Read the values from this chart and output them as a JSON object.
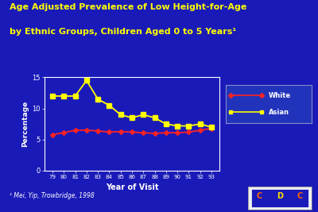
{
  "title_line1": "Age Adjusted Prevalence of Low Height-for-Age",
  "title_line2": "by Ethnic Groups, Children Aged 0 to 5 Years¹",
  "xlabel": "Year of Visit",
  "ylabel": "Percentage",
  "footnote": "¹ Mei, Yip, Trowbridge, 1998",
  "background_color": "#1a1ab8",
  "plot_bg_color": "#1a1ab8",
  "title_color": "#ffff00",
  "axis_color": "#ffffff",
  "xlabel_color": "#ffffff",
  "ylabel_color": "#ffffff",
  "tick_color": "#ffffff",
  "footnote_color": "#ffffff",
  "years": [
    79,
    80,
    81,
    82,
    83,
    84,
    85,
    86,
    87,
    88,
    89,
    90,
    91,
    92,
    93
  ],
  "asian": [
    12.0,
    12.0,
    12.0,
    14.5,
    11.5,
    10.5,
    9.0,
    8.5,
    9.0,
    8.5,
    7.5,
    7.2,
    7.2,
    7.5,
    7.0
  ],
  "white": [
    5.8,
    6.1,
    6.5,
    6.5,
    6.4,
    6.2,
    6.3,
    6.2,
    6.1,
    6.0,
    6.1,
    6.1,
    6.2,
    6.5,
    6.8
  ],
  "asian_color": "#ffff00",
  "white_color": "#ff2222",
  "ylim": [
    0,
    15
  ],
  "yticks": [
    0,
    5,
    10,
    15
  ],
  "legend_bg": "#2233bb",
  "legend_edge": "#8888cc"
}
